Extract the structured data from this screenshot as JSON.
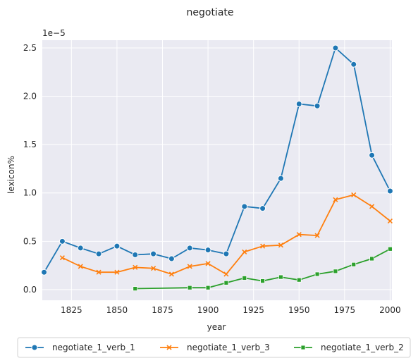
{
  "chart_data": {
    "type": "line",
    "title": "negotiate",
    "xlabel": "year",
    "ylabel": "lexicon%",
    "y_offset_text": "1e−5",
    "xlim": [
      1809,
      2001
    ],
    "ylim": [
      -0.11,
      2.58
    ],
    "x_ticks": [
      1825,
      1850,
      1875,
      1900,
      1925,
      1950,
      1975,
      2000
    ],
    "y_ticks": [
      0.0,
      0.5,
      1.0,
      1.5,
      2.0,
      2.5
    ],
    "y_tick_labels": [
      "0.0",
      "0.5",
      "1.0",
      "1.5",
      "2.0",
      "2.5"
    ],
    "grid": true,
    "legend_position": "bottom",
    "series": [
      {
        "name": "negotiate_1_verb_1",
        "color": "#1f77b4",
        "marker": "circle",
        "x": [
          1810,
          1820,
          1830,
          1840,
          1850,
          1860,
          1870,
          1880,
          1890,
          1900,
          1910,
          1920,
          1930,
          1940,
          1950,
          1960,
          1970,
          1980,
          1990,
          2000
        ],
        "values": [
          0.18,
          0.5,
          0.43,
          0.37,
          0.45,
          0.36,
          0.37,
          0.32,
          0.43,
          0.41,
          0.37,
          0.86,
          0.84,
          1.15,
          1.92,
          1.9,
          2.5,
          2.33,
          1.39,
          1.02
        ]
      },
      {
        "name": "negotiate_1_verb_3",
        "color": "#ff7f0e",
        "marker": "x",
        "x": [
          1820,
          1830,
          1840,
          1850,
          1860,
          1870,
          1880,
          1890,
          1900,
          1910,
          1920,
          1930,
          1940,
          1950,
          1960,
          1970,
          1980,
          1990,
          2000
        ],
        "values": [
          0.33,
          0.24,
          0.18,
          0.18,
          0.23,
          0.22,
          0.16,
          0.24,
          0.27,
          0.16,
          0.39,
          0.45,
          0.46,
          0.57,
          0.56,
          0.93,
          0.98,
          0.86,
          0.71
        ]
      },
      {
        "name": "negotiate_1_verb_2",
        "color": "#2ca02c",
        "marker": "square",
        "x": [
          1860,
          1890,
          1900,
          1910,
          1920,
          1930,
          1940,
          1950,
          1960,
          1970,
          1980,
          1990,
          2000
        ],
        "values": [
          0.01,
          0.02,
          0.02,
          0.07,
          0.12,
          0.09,
          0.13,
          0.1,
          0.16,
          0.19,
          0.26,
          0.32,
          0.42
        ]
      }
    ]
  }
}
